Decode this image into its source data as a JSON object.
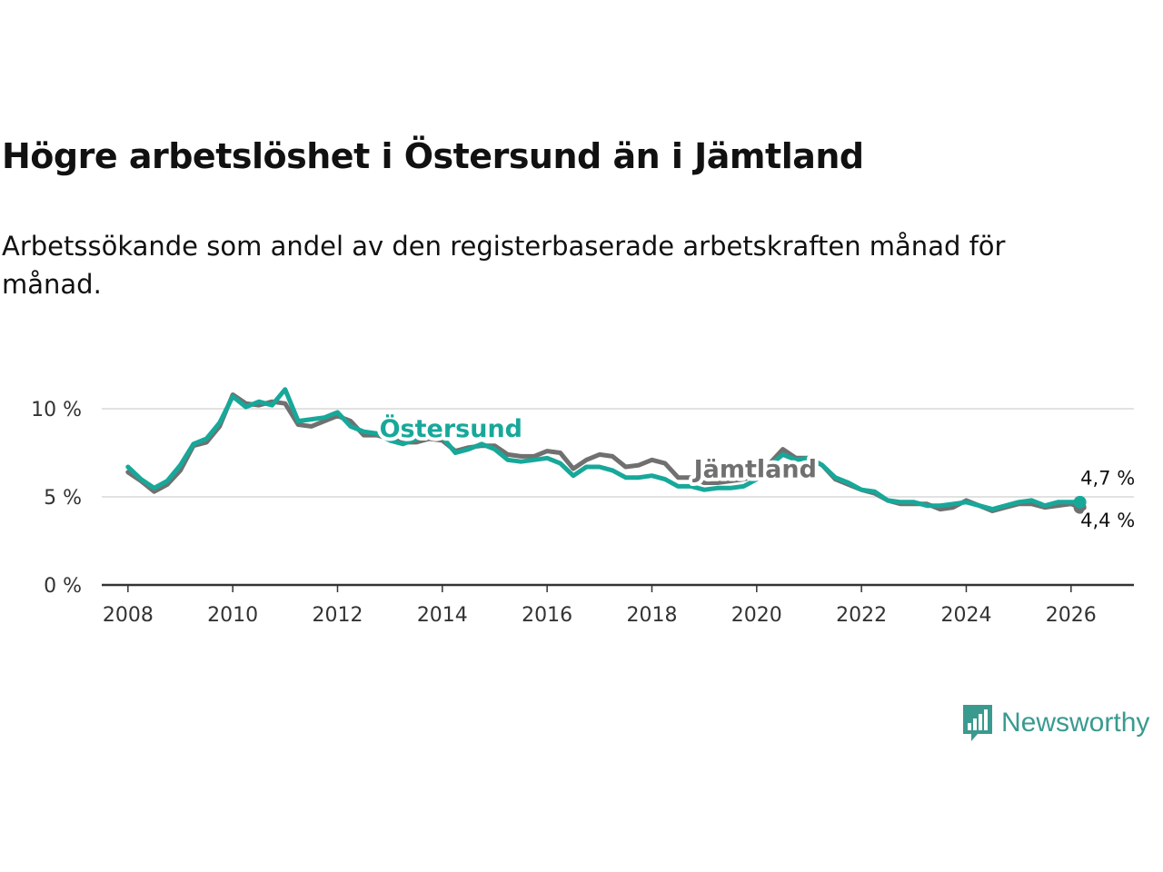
{
  "header": {
    "title": "Högre arbetslöshet i Östersund än i Jämtland",
    "subtitle": "Arbetssökande som andel av den registerbaserade arbetskraften månad för månad."
  },
  "brand": {
    "name": "Newsworthy",
    "icon": "bar-chart-speech-bubble-icon",
    "color": "#3a9a8f"
  },
  "colors": {
    "ostersund": "#17a89a",
    "jamtland": "#707070",
    "axis": "#333333",
    "grid": "#d8d8d8"
  },
  "chart_data": {
    "type": "line",
    "title": "Högre arbetslöshet i Östersund än i Jämtland",
    "xlabel": "",
    "ylabel": "",
    "xlim": [
      2007.5,
      2027.2
    ],
    "ylim": [
      0,
      10
    ],
    "x_ticks": [
      2008,
      2010,
      2012,
      2014,
      2016,
      2018,
      2020,
      2022,
      2024,
      2026
    ],
    "x_tick_labels": [
      "2008",
      "2010",
      "2012",
      "2014",
      "2016",
      "2018",
      "2020",
      "2022",
      "2024",
      "2026"
    ],
    "y_ticks": [
      0,
      5,
      10
    ],
    "y_tick_labels": [
      "0 %",
      "5 %",
      "10 %"
    ],
    "series": [
      {
        "name": "Jämtland",
        "color": "#707070",
        "label": "Jämtland",
        "end_label": "4,4 %",
        "x": [
          2008.0,
          2008.25,
          2008.5,
          2008.75,
          2009.0,
          2009.25,
          2009.5,
          2009.75,
          2010.0,
          2010.25,
          2010.5,
          2010.75,
          2011.0,
          2011.25,
          2011.5,
          2011.75,
          2012.0,
          2012.25,
          2012.5,
          2012.75,
          2013.0,
          2013.25,
          2013.5,
          2013.75,
          2014.0,
          2014.25,
          2014.5,
          2014.75,
          2015.0,
          2015.25,
          2015.5,
          2015.75,
          2016.0,
          2016.25,
          2016.5,
          2016.75,
          2017.0,
          2017.25,
          2017.5,
          2017.75,
          2018.0,
          2018.25,
          2018.5,
          2018.75,
          2019.0,
          2019.25,
          2019.5,
          2019.75,
          2020.0,
          2020.25,
          2020.5,
          2020.75,
          2021.0,
          2021.25,
          2021.5,
          2021.75,
          2022.0,
          2022.25,
          2022.5,
          2022.75,
          2023.0,
          2023.25,
          2023.5,
          2023.75,
          2024.0,
          2024.25,
          2024.5,
          2024.75,
          2025.0,
          2025.25,
          2025.5,
          2025.75,
          2026.0,
          2026.17
        ],
        "values": [
          6.4,
          5.9,
          5.3,
          5.7,
          6.5,
          7.9,
          8.1,
          9.0,
          10.8,
          10.3,
          10.2,
          10.4,
          10.3,
          9.1,
          9.0,
          9.3,
          9.6,
          9.3,
          8.5,
          8.5,
          8.3,
          8.1,
          8.1,
          8.3,
          8.2,
          7.6,
          7.8,
          7.9,
          7.9,
          7.4,
          7.3,
          7.3,
          7.6,
          7.5,
          6.6,
          7.1,
          7.4,
          7.3,
          6.7,
          6.8,
          7.1,
          6.9,
          6.1,
          6.1,
          5.8,
          5.8,
          5.9,
          6.0,
          6.2,
          6.9,
          7.7,
          7.2,
          7.2,
          6.8,
          6.0,
          5.7,
          5.4,
          5.2,
          4.8,
          4.6,
          4.6,
          4.6,
          4.3,
          4.4,
          4.8,
          4.5,
          4.2,
          4.4,
          4.6,
          4.6,
          4.4,
          4.5,
          4.6,
          4.4
        ]
      },
      {
        "name": "Östersund",
        "color": "#17a89a",
        "label": "Östersund",
        "end_label": "4,7 %",
        "x": [
          2008.0,
          2008.25,
          2008.5,
          2008.75,
          2009.0,
          2009.25,
          2009.5,
          2009.75,
          2010.0,
          2010.25,
          2010.5,
          2010.75,
          2011.0,
          2011.25,
          2011.5,
          2011.75,
          2012.0,
          2012.25,
          2012.5,
          2012.75,
          2013.0,
          2013.25,
          2013.5,
          2013.75,
          2014.0,
          2014.25,
          2014.5,
          2014.75,
          2015.0,
          2015.25,
          2015.5,
          2015.75,
          2016.0,
          2016.25,
          2016.5,
          2016.75,
          2017.0,
          2017.25,
          2017.5,
          2017.75,
          2018.0,
          2018.25,
          2018.5,
          2018.75,
          2019.0,
          2019.25,
          2019.5,
          2019.75,
          2020.0,
          2020.25,
          2020.5,
          2020.75,
          2021.0,
          2021.25,
          2021.5,
          2021.75,
          2022.0,
          2022.25,
          2022.5,
          2022.75,
          2023.0,
          2023.25,
          2023.5,
          2023.75,
          2024.0,
          2024.25,
          2024.5,
          2024.75,
          2025.0,
          2025.25,
          2025.5,
          2025.75,
          2026.0,
          2026.17
        ],
        "values": [
          6.7,
          6.0,
          5.5,
          5.9,
          6.8,
          8.0,
          8.3,
          9.2,
          10.7,
          10.1,
          10.4,
          10.2,
          11.1,
          9.3,
          9.4,
          9.5,
          9.8,
          9.0,
          8.7,
          8.6,
          8.2,
          8.0,
          8.3,
          8.5,
          8.4,
          7.5,
          7.7,
          8.0,
          7.7,
          7.1,
          7.0,
          7.1,
          7.2,
          6.9,
          6.2,
          6.7,
          6.7,
          6.5,
          6.1,
          6.1,
          6.2,
          6.0,
          5.6,
          5.6,
          5.4,
          5.5,
          5.5,
          5.6,
          6.0,
          6.8,
          7.4,
          7.1,
          7.2,
          6.8,
          6.1,
          5.8,
          5.4,
          5.3,
          4.8,
          4.7,
          4.7,
          4.5,
          4.5,
          4.6,
          4.7,
          4.5,
          4.3,
          4.5,
          4.7,
          4.8,
          4.5,
          4.7,
          4.7,
          4.7
        ]
      }
    ]
  }
}
